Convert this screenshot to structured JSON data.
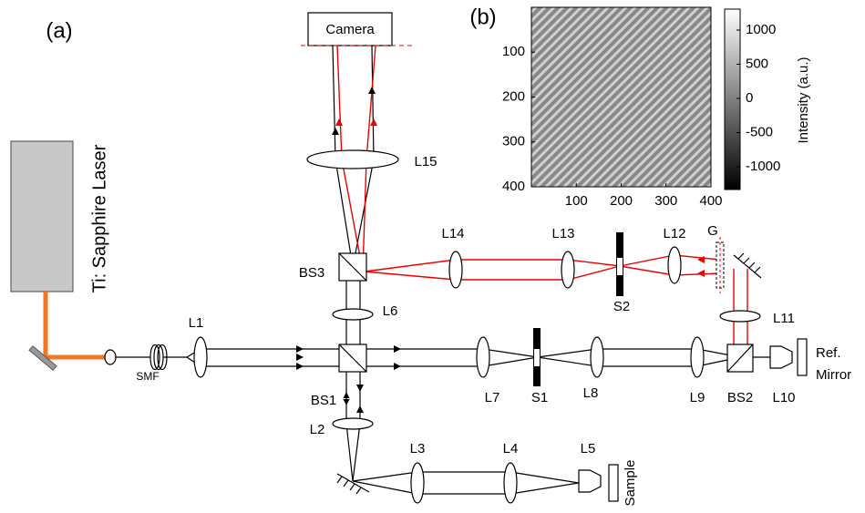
{
  "panel_labels": {
    "a": "(a)",
    "b": "(b)"
  },
  "components": {
    "camera": "Camera",
    "laser": "Ti: Sapphire Laser",
    "smf": "SMF",
    "l1": "L1",
    "l2": "L2",
    "l3": "L3",
    "l4": "L4",
    "l5": "L5",
    "l6": "L6",
    "l7": "L7",
    "l8": "L8",
    "l9": "L9",
    "l10": "L10",
    "l11": "L11",
    "l12": "L12",
    "l13": "L13",
    "l14": "L14",
    "l15": "L15",
    "bs1": "BS1",
    "bs2": "BS2",
    "bs3": "BS3",
    "s1": "S1",
    "s2": "S2",
    "g": "G",
    "ref_mirror_1": "Ref.",
    "ref_mirror_2": "Mirror",
    "sample": "Sample"
  },
  "inset": {
    "yticks": [
      100,
      200,
      300,
      400
    ],
    "xticks": [
      100,
      200,
      300,
      400
    ],
    "colorbar_ticks": [
      1000,
      500,
      0,
      -500,
      -1000
    ],
    "colorbar_label": "Intensity (a.u.)"
  }
}
